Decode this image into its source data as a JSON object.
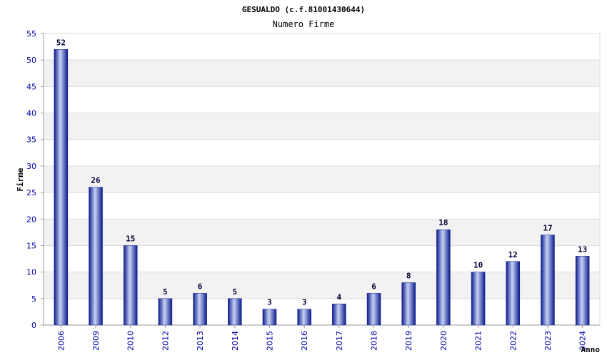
{
  "chart_data": {
    "type": "bar",
    "title": "GESUALDO (c.f.81001430644)",
    "subtitle": "Numero Firme",
    "xlabel": "Anno",
    "ylabel": "Firme",
    "categories": [
      "2006",
      "2009",
      "2010",
      "2012",
      "2013",
      "2014",
      "2015",
      "2016",
      "2017",
      "2018",
      "2019",
      "2020",
      "2021",
      "2022",
      "2023",
      "2024"
    ],
    "values": [
      52,
      26,
      15,
      5,
      6,
      5,
      3,
      3,
      4,
      6,
      8,
      18,
      10,
      12,
      17,
      13
    ],
    "ylim": [
      0,
      55
    ],
    "yticks": [
      0,
      5,
      10,
      15,
      20,
      25,
      30,
      35,
      40,
      45,
      50,
      55
    ],
    "grid": true,
    "legend": "none",
    "colors": {
      "bar_dark": "#0a1a8c",
      "bar_light": "#c8d2f5",
      "band": "#f2f2f2",
      "axis": "#999999",
      "tick_text": "#0000aa"
    }
  }
}
